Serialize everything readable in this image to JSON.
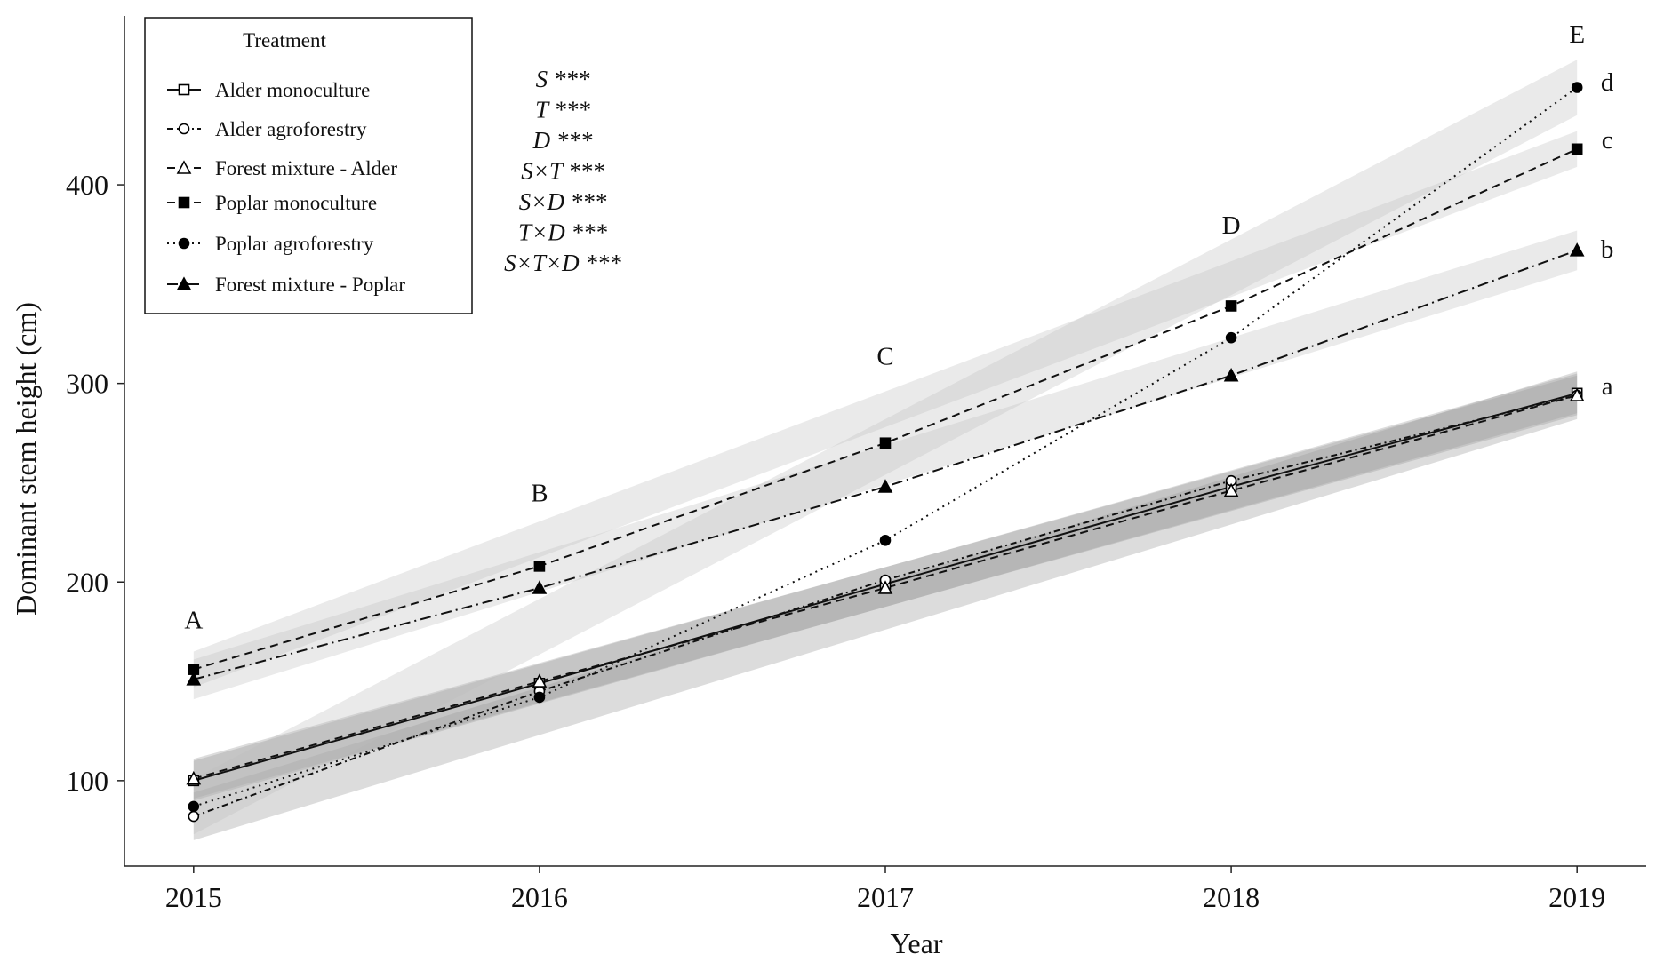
{
  "chart_data": {
    "type": "line",
    "xlabel": "Year",
    "ylabel": "Dominant stem height (cm)",
    "x": [
      2015,
      2016,
      2017,
      2018,
      2019
    ],
    "xlim": [
      2014.8,
      2019.2
    ],
    "ylim": [
      57,
      485
    ],
    "yticks": [
      100,
      200,
      300,
      400
    ],
    "legend": {
      "title": "Treatment",
      "position": "top-left"
    },
    "series": [
      {
        "name": "Alder monoculture",
        "marker": "open-square",
        "dash": "solid",
        "values": [
          100,
          149,
          199,
          248,
          295
        ],
        "band": 10
      },
      {
        "name": "Alder agroforestry",
        "marker": "open-circle",
        "dash": "dashed-dot",
        "values": [
          82,
          145,
          201,
          251,
          294
        ],
        "band": 12
      },
      {
        "name": "Forest mixture - Alder",
        "marker": "open-triangle",
        "dash": "dashed",
        "values": [
          101,
          150,
          197,
          246,
          294
        ],
        "band": 10
      },
      {
        "name": "Poplar monoculture",
        "marker": "filled-square",
        "dash": "dashed",
        "values": [
          156,
          208,
          270,
          339,
          418
        ],
        "band": 9
      },
      {
        "name": "Poplar agroforestry",
        "marker": "filled-circle",
        "dash": "dotted",
        "values": [
          87,
          142,
          221,
          323,
          449
        ],
        "band": 14
      },
      {
        "name": "Forest mixture - Poplar",
        "marker": "filled-triangle",
        "dash": "dash-dot",
        "values": [
          151,
          197,
          248,
          304,
          367
        ],
        "band": 10
      }
    ],
    "year_letters": [
      {
        "x": 2015,
        "label": "A",
        "y": 181
      },
      {
        "x": 2016,
        "label": "B",
        "y": 245
      },
      {
        "x": 2017,
        "label": "C",
        "y": 314
      },
      {
        "x": 2018,
        "label": "D",
        "y": 380
      },
      {
        "x": 2019,
        "label": "E",
        "y": 476
      }
    ],
    "end_letters": [
      {
        "label": "d",
        "y": 451
      },
      {
        "label": "c",
        "y": 422
      },
      {
        "label": "b",
        "y": 367
      },
      {
        "label": "a",
        "y": 298
      }
    ],
    "stats": [
      "S ***",
      "T ***",
      "D ***",
      "S×T ***",
      "S×D ***",
      "T×D ***",
      "S×T×D ***"
    ]
  }
}
